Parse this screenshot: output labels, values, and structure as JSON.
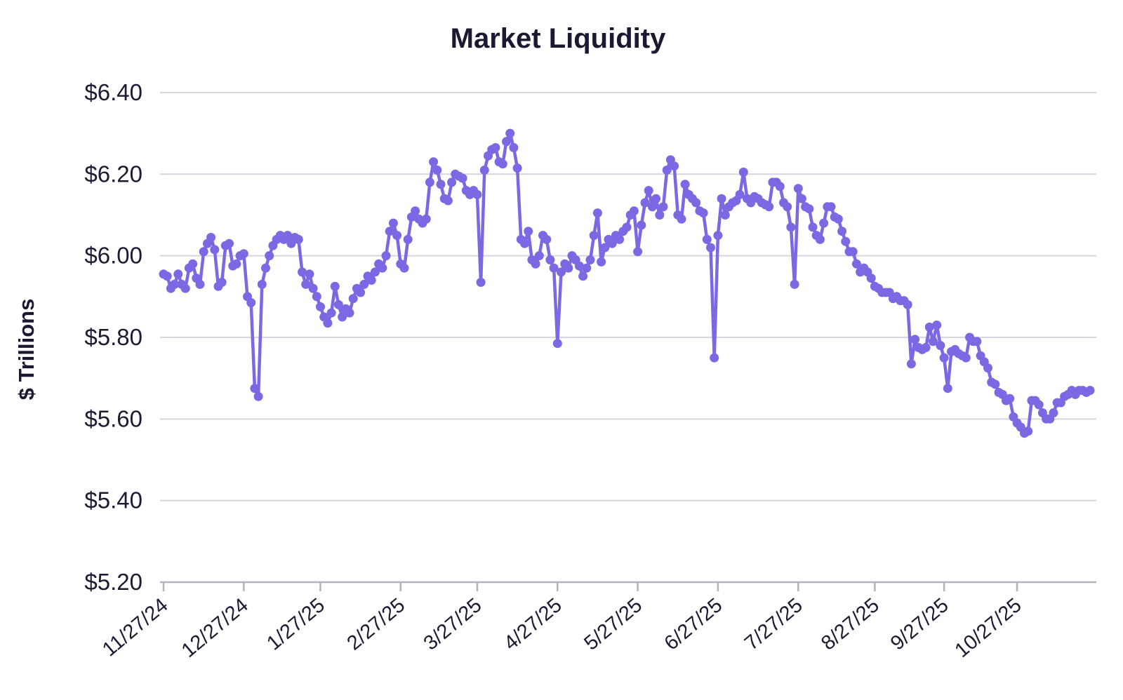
{
  "colors": {
    "accent": "#7C68E3",
    "text": "#1B1B33",
    "title_text": "#191931",
    "grid": "#D6D6DE",
    "axis": "#B3B3BF",
    "background": "#FFFFFF"
  },
  "chart_data": {
    "type": "line",
    "title": "Market Liquidity",
    "xlabel": "",
    "ylabel": "$ Trillions",
    "ylim": [
      5.2,
      6.4
    ],
    "grid": "horizontal",
    "legend": "none",
    "marker": "circle",
    "y_tick_labels": [
      "$6.40",
      "$6.20",
      "$6.00",
      "$5.80",
      "$5.60",
      "$5.40",
      "$5.20"
    ],
    "y_tick_values": [
      6.4,
      6.2,
      6.0,
      5.8,
      5.6,
      5.4,
      5.2
    ],
    "x_tick_labels": [
      "11/27/24",
      "12/27/24",
      "1/27/25",
      "2/27/25",
      "3/27/25",
      "4/27/25",
      "5/27/25",
      "6/27/25",
      "7/27/25",
      "8/27/25",
      "9/27/25",
      "10/27/25"
    ],
    "x_tick_indices": [
      0,
      22,
      43,
      65,
      86,
      108,
      130,
      152,
      174,
      195,
      214,
      234
    ],
    "series": [
      {
        "name": "Market Liquidity",
        "color": "#7C68E3",
        "values": [
          5.955,
          5.95,
          5.92,
          5.93,
          5.955,
          5.93,
          5.92,
          5.97,
          5.98,
          5.945,
          5.93,
          6.01,
          6.03,
          6.045,
          6.015,
          5.925,
          5.935,
          6.025,
          6.03,
          5.975,
          5.98,
          6.0,
          6.005,
          5.9,
          5.885,
          5.675,
          5.655,
          5.93,
          5.97,
          6.0,
          6.025,
          6.04,
          6.05,
          6.04,
          6.05,
          6.03,
          6.045,
          6.04,
          5.96,
          5.93,
          5.955,
          5.92,
          5.9,
          5.875,
          5.85,
          5.835,
          5.86,
          5.925,
          5.88,
          5.85,
          5.87,
          5.86,
          5.895,
          5.92,
          5.91,
          5.93,
          5.95,
          5.94,
          5.96,
          5.98,
          5.97,
          6.0,
          6.06,
          6.08,
          6.05,
          5.98,
          5.97,
          6.04,
          6.095,
          6.11,
          6.09,
          6.08,
          6.09,
          6.18,
          6.23,
          6.21,
          6.175,
          6.14,
          6.135,
          6.18,
          6.2,
          6.195,
          6.19,
          6.16,
          6.15,
          6.16,
          6.15,
          5.935,
          6.21,
          6.245,
          6.26,
          6.265,
          6.23,
          6.225,
          6.28,
          6.3,
          6.265,
          6.215,
          6.04,
          6.03,
          6.06,
          5.99,
          5.98,
          6.0,
          6.05,
          6.04,
          5.99,
          5.97,
          5.785,
          5.96,
          5.98,
          5.97,
          6.0,
          5.99,
          5.975,
          5.95,
          5.97,
          5.99,
          6.05,
          6.105,
          5.985,
          6.02,
          6.04,
          6.03,
          6.05,
          6.04,
          6.06,
          6.07,
          6.1,
          6.11,
          6.01,
          6.075,
          6.13,
          6.16,
          6.12,
          6.14,
          6.1,
          6.12,
          6.21,
          6.235,
          6.22,
          6.1,
          6.09,
          6.175,
          6.15,
          6.14,
          6.13,
          6.11,
          6.105,
          6.04,
          6.02,
          5.75,
          6.05,
          6.14,
          6.1,
          6.12,
          6.13,
          6.135,
          6.15,
          6.205,
          6.14,
          6.13,
          6.145,
          6.14,
          6.13,
          6.125,
          6.12,
          6.18,
          6.18,
          6.17,
          6.13,
          6.12,
          6.07,
          5.93,
          6.165,
          6.14,
          6.12,
          6.115,
          6.07,
          6.05,
          6.04,
          6.08,
          6.12,
          6.12,
          6.095,
          6.09,
          6.06,
          6.035,
          6.01,
          6.01,
          5.98,
          5.96,
          5.97,
          5.96,
          5.945,
          5.925,
          5.92,
          5.91,
          5.91,
          5.91,
          5.895,
          5.9,
          5.89,
          5.89,
          5.88,
          5.735,
          5.795,
          5.775,
          5.77,
          5.775,
          5.825,
          5.79,
          5.83,
          5.78,
          5.75,
          5.675,
          5.765,
          5.77,
          5.76,
          5.755,
          5.75,
          5.8,
          5.79,
          5.79,
          5.755,
          5.74,
          5.725,
          5.69,
          5.685,
          5.665,
          5.66,
          5.645,
          5.65,
          5.605,
          5.59,
          5.58,
          5.565,
          5.57,
          5.645,
          5.645,
          5.635,
          5.615,
          5.6,
          5.6,
          5.615,
          5.64,
          5.64,
          5.655,
          5.66,
          5.67,
          5.66,
          5.67,
          5.67,
          5.665,
          5.67
        ]
      }
    ]
  }
}
